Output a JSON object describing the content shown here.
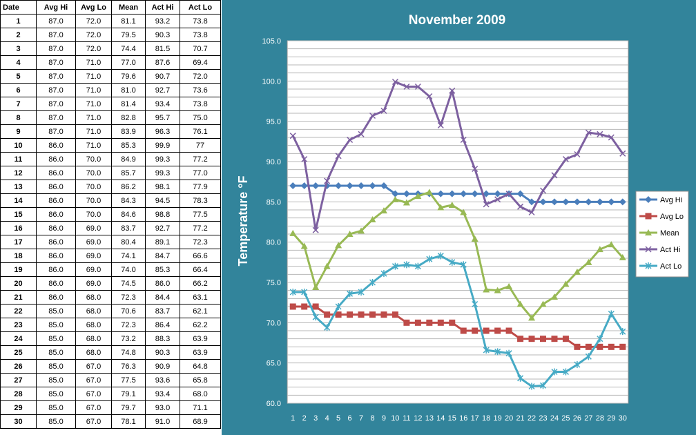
{
  "table": {
    "headers": [
      "Date",
      "Avg Hi",
      "Avg Lo",
      "Mean",
      "Act Hi",
      "Act Lo"
    ],
    "rows": [
      [
        "1",
        "87.0",
        "72.0",
        "81.1",
        "93.2",
        "73.8"
      ],
      [
        "2",
        "87.0",
        "72.0",
        "79.5",
        "90.3",
        "73.8"
      ],
      [
        "3",
        "87.0",
        "72.0",
        "74.4",
        "81.5",
        "70.7"
      ],
      [
        "4",
        "87.0",
        "71.0",
        "77.0",
        "87.6",
        "69.4"
      ],
      [
        "5",
        "87.0",
        "71.0",
        "79.6",
        "90.7",
        "72.0"
      ],
      [
        "6",
        "87.0",
        "71.0",
        "81.0",
        "92.7",
        "73.6"
      ],
      [
        "7",
        "87.0",
        "71.0",
        "81.4",
        "93.4",
        "73.8"
      ],
      [
        "8",
        "87.0",
        "71.0",
        "82.8",
        "95.7",
        "75.0"
      ],
      [
        "9",
        "87.0",
        "71.0",
        "83.9",
        "96.3",
        "76.1"
      ],
      [
        "10",
        "86.0",
        "71.0",
        "85.3",
        "99.9",
        "77"
      ],
      [
        "11",
        "86.0",
        "70.0",
        "84.9",
        "99.3",
        "77.2"
      ],
      [
        "12",
        "86.0",
        "70.0",
        "85.7",
        "99.3",
        "77.0"
      ],
      [
        "13",
        "86.0",
        "70.0",
        "86.2",
        "98.1",
        "77.9"
      ],
      [
        "14",
        "86.0",
        "70.0",
        "84.3",
        "94.5",
        "78.3"
      ],
      [
        "15",
        "86.0",
        "70.0",
        "84.6",
        "98.8",
        "77.5"
      ],
      [
        "16",
        "86.0",
        "69.0",
        "83.7",
        "92.7",
        "77.2"
      ],
      [
        "17",
        "86.0",
        "69.0",
        "80.4",
        "89.1",
        "72.3"
      ],
      [
        "18",
        "86.0",
        "69.0",
        "74.1",
        "84.7",
        "66.6"
      ],
      [
        "19",
        "86.0",
        "69.0",
        "74.0",
        "85.3",
        "66.4"
      ],
      [
        "20",
        "86.0",
        "69.0",
        "74.5",
        "86.0",
        "66.2"
      ],
      [
        "21",
        "86.0",
        "68.0",
        "72.3",
        "84.4",
        "63.1"
      ],
      [
        "22",
        "85.0",
        "68.0",
        "70.6",
        "83.7",
        "62.1"
      ],
      [
        "23",
        "85.0",
        "68.0",
        "72.3",
        "86.4",
        "62.2"
      ],
      [
        "24",
        "85.0",
        "68.0",
        "73.2",
        "88.3",
        "63.9"
      ],
      [
        "25",
        "85.0",
        "68.0",
        "74.8",
        "90.3",
        "63.9"
      ],
      [
        "26",
        "85.0",
        "67.0",
        "76.3",
        "90.9",
        "64.8"
      ],
      [
        "27",
        "85.0",
        "67.0",
        "77.5",
        "93.6",
        "65.8"
      ],
      [
        "28",
        "85.0",
        "67.0",
        "79.1",
        "93.4",
        "68.0"
      ],
      [
        "29",
        "85.0",
        "67.0",
        "79.7",
        "93.0",
        "71.1"
      ],
      [
        "30",
        "85.0",
        "67.0",
        "78.1",
        "91.0",
        "68.9"
      ]
    ]
  },
  "chart_data": {
    "type": "line",
    "title": "November 2009",
    "xlabel": "",
    "ylabel": "Temperature °F",
    "x": [
      1,
      2,
      3,
      4,
      5,
      6,
      7,
      8,
      9,
      10,
      11,
      12,
      13,
      14,
      15,
      16,
      17,
      18,
      19,
      20,
      21,
      22,
      23,
      24,
      25,
      26,
      27,
      28,
      29,
      30
    ],
    "ylim": [
      60,
      105
    ],
    "yticks": [
      "60.0",
      "65.0",
      "70.0",
      "75.0",
      "80.0",
      "85.0",
      "90.0",
      "95.0",
      "100.0",
      "105.0"
    ],
    "grid": true,
    "legend_position": "right",
    "series": [
      {
        "name": "Avg Hi",
        "color": "#4a7ebb",
        "marker": "diamond",
        "values": [
          87,
          87,
          87,
          87,
          87,
          87,
          87,
          87,
          87,
          86,
          86,
          86,
          86,
          86,
          86,
          86,
          86,
          86,
          86,
          86,
          86,
          85,
          85,
          85,
          85,
          85,
          85,
          85,
          85,
          85
        ]
      },
      {
        "name": "Avg Lo",
        "color": "#be4b48",
        "marker": "square",
        "values": [
          72,
          72,
          72,
          71,
          71,
          71,
          71,
          71,
          71,
          71,
          70,
          70,
          70,
          70,
          70,
          69,
          69,
          69,
          69,
          69,
          68,
          68,
          68,
          68,
          68,
          67,
          67,
          67,
          67,
          67
        ]
      },
      {
        "name": "Mean",
        "color": "#98b954",
        "marker": "triangle",
        "values": [
          81.1,
          79.5,
          74.4,
          77.0,
          79.6,
          81.0,
          81.4,
          82.8,
          83.9,
          85.3,
          84.9,
          85.7,
          86.2,
          84.3,
          84.6,
          83.7,
          80.4,
          74.1,
          74.0,
          74.5,
          72.3,
          70.6,
          72.3,
          73.2,
          74.8,
          76.3,
          77.5,
          79.1,
          79.7,
          78.1
        ]
      },
      {
        "name": "Act Hi",
        "color": "#7d60a0",
        "marker": "x",
        "values": [
          93.2,
          90.3,
          81.5,
          87.6,
          90.7,
          92.7,
          93.4,
          95.7,
          96.3,
          99.9,
          99.3,
          99.3,
          98.1,
          94.5,
          98.8,
          92.7,
          89.1,
          84.7,
          85.3,
          86.0,
          84.4,
          83.7,
          86.4,
          88.3,
          90.3,
          90.9,
          93.6,
          93.4,
          93.0,
          91.0
        ]
      },
      {
        "name": "Act Lo",
        "color": "#46aac5",
        "marker": "star",
        "values": [
          73.8,
          73.8,
          70.7,
          69.4,
          72.0,
          73.6,
          73.8,
          75.0,
          76.1,
          77,
          77.2,
          77.0,
          77.9,
          78.3,
          77.5,
          77.2,
          72.3,
          66.6,
          66.4,
          66.2,
          63.1,
          62.1,
          62.2,
          63.9,
          63.9,
          64.8,
          65.8,
          68.0,
          71.1,
          68.9
        ]
      }
    ]
  }
}
